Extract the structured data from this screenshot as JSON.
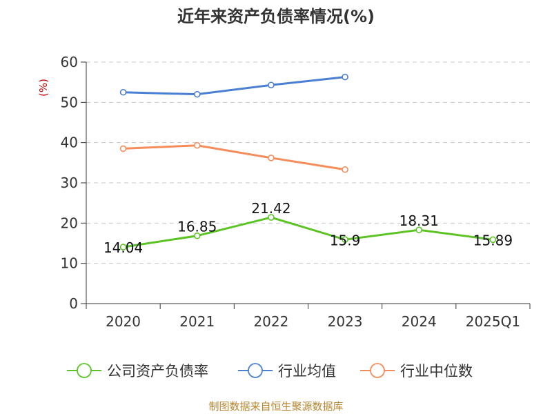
{
  "chart_data": {
    "type": "line",
    "title": "近年来资产负债率情况(%)",
    "ylabel": "(%)",
    "categories": [
      "2020",
      "2021",
      "2022",
      "2023",
      "2024",
      "2025Q1"
    ],
    "ylim": [
      0,
      60
    ],
    "yticks": [
      0,
      10,
      20,
      30,
      40,
      50,
      60
    ],
    "grid": true,
    "legend_position": "bottom",
    "series": [
      {
        "name": "公司资产负债率",
        "color": "#5bc424",
        "values": [
          14.04,
          16.85,
          21.42,
          15.9,
          18.31,
          15.89
        ],
        "labels": [
          "14.04",
          "16.85",
          "21.42",
          "15.9",
          "18.31",
          "15.89"
        ]
      },
      {
        "name": "行业均值",
        "color": "#4a7fd4",
        "values": [
          52.5,
          52.0,
          54.3,
          56.3,
          null,
          null
        ]
      },
      {
        "name": "行业中位数",
        "color": "#f58c5a",
        "values": [
          38.5,
          39.3,
          36.2,
          33.3,
          null,
          null
        ]
      }
    ]
  },
  "source": "制图数据来自恒生聚源数据库"
}
